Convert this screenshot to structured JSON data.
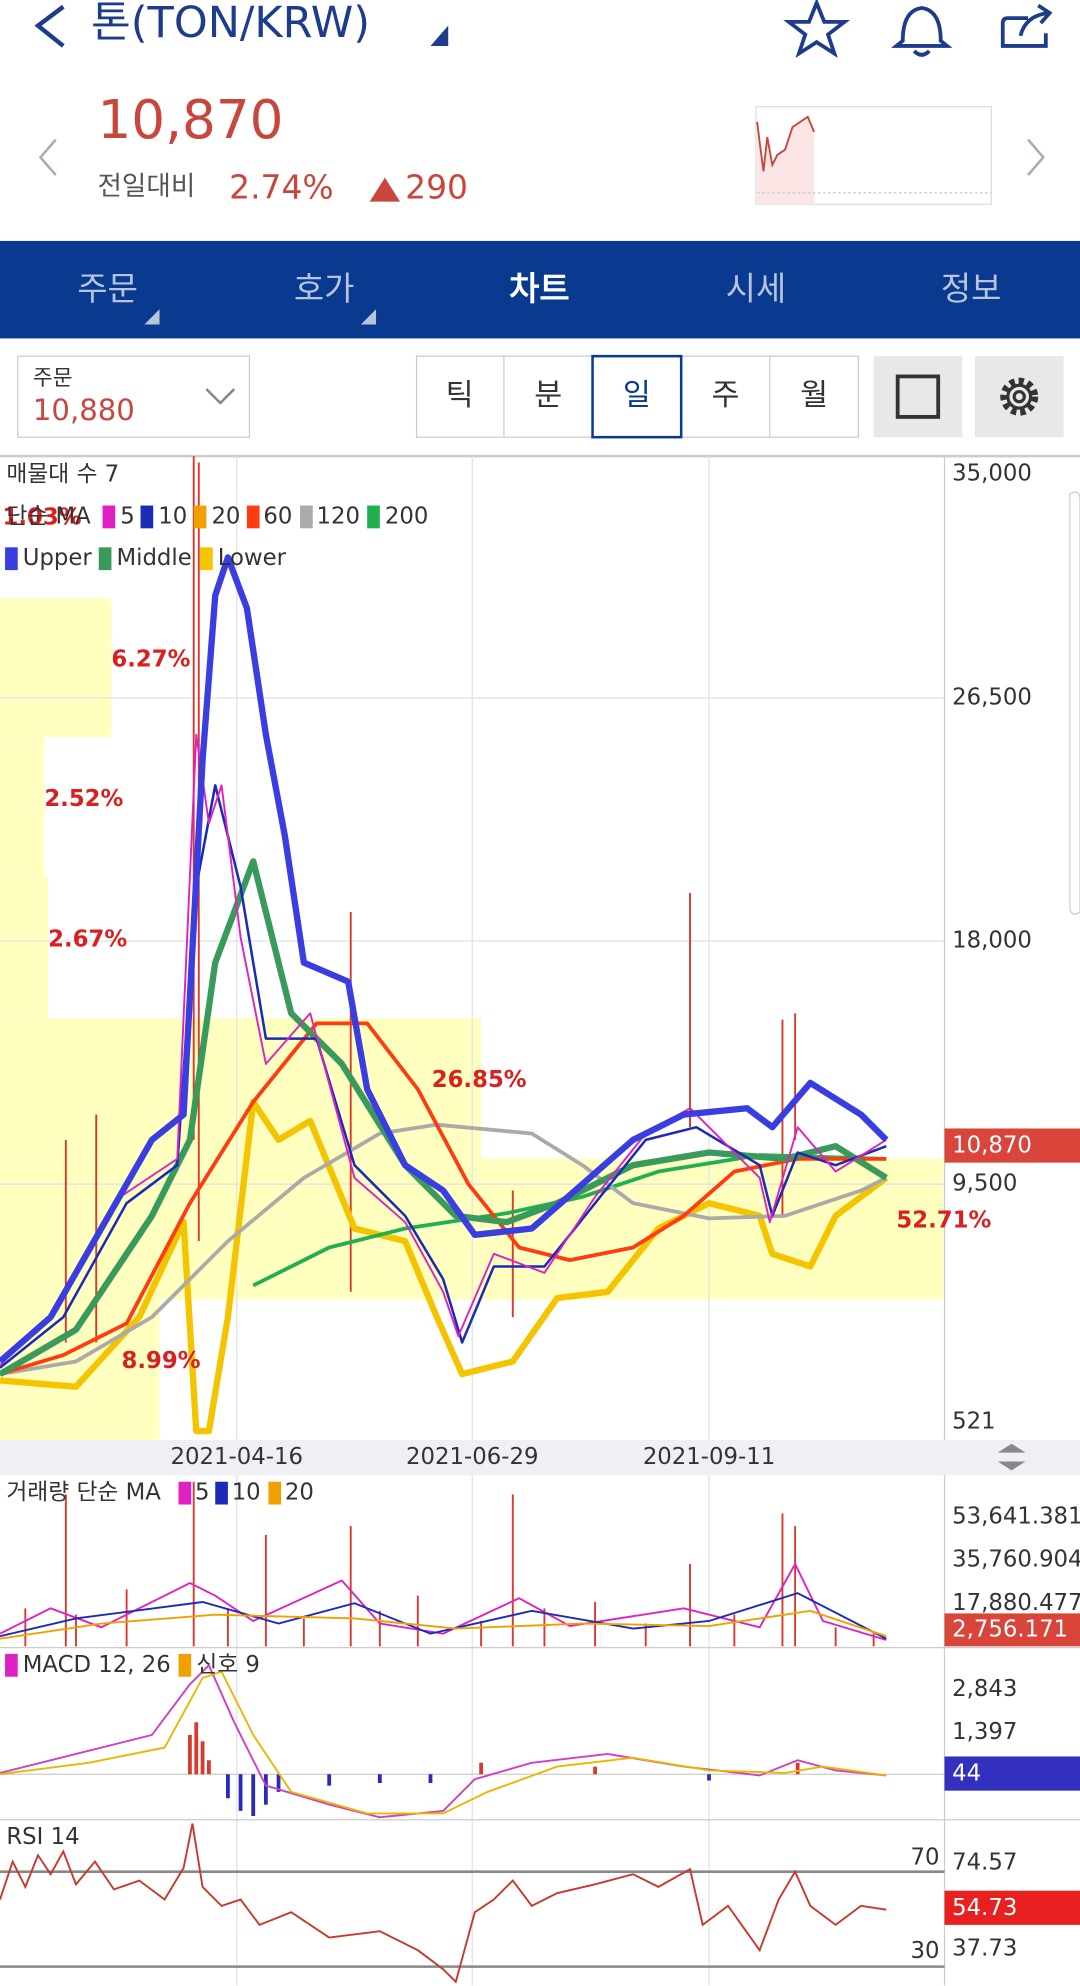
{
  "header": {
    "title": "톤(TON/KRW)"
  },
  "quote": {
    "price": "10,870",
    "change_label": "전일대비",
    "change_pct": "2.74%",
    "change": "290"
  },
  "tabs": [
    "주문",
    "호가",
    "차트",
    "시세",
    "정보"
  ],
  "order": {
    "label": "주문",
    "price": "10,880"
  },
  "periods": [
    "틱",
    "분",
    "일",
    "주",
    "월"
  ],
  "main_chart": {
    "legend_profile": "매물대 수 7",
    "legend_ma": "단순 MA",
    "ma_periods": [
      "5",
      "10",
      "20",
      "60",
      "120",
      "200"
    ],
    "bands": [
      "Upper",
      "Middle",
      "Lower"
    ],
    "price_axis": [
      "35,000",
      "26,500",
      "18,000",
      "9,500",
      "521"
    ],
    "current": "10,870",
    "profile_pcts": [
      "1.03%",
      "6.27%",
      "2.52%",
      "2.67%",
      "26.85%",
      "52.71%",
      "8.99%"
    ],
    "dates": [
      "2021-04-16",
      "2021-06-29",
      "2021-09-11"
    ]
  },
  "volume": {
    "title": "거래량 단순 MA",
    "ma_periods": [
      "5",
      "10",
      "20"
    ],
    "axis": [
      "53,641.381",
      "35,760.904",
      "17,880.477"
    ],
    "current": "2,756.171"
  },
  "macd": {
    "title": "MACD 12, 26",
    "signal": "신호 9",
    "axis": [
      "2,843",
      "1,397"
    ],
    "current": "44"
  },
  "rsi": {
    "title": "RSI 14",
    "levels": [
      "70",
      "30"
    ],
    "axis": [
      "74.57",
      "37.73"
    ],
    "current": "54.73"
  }
}
